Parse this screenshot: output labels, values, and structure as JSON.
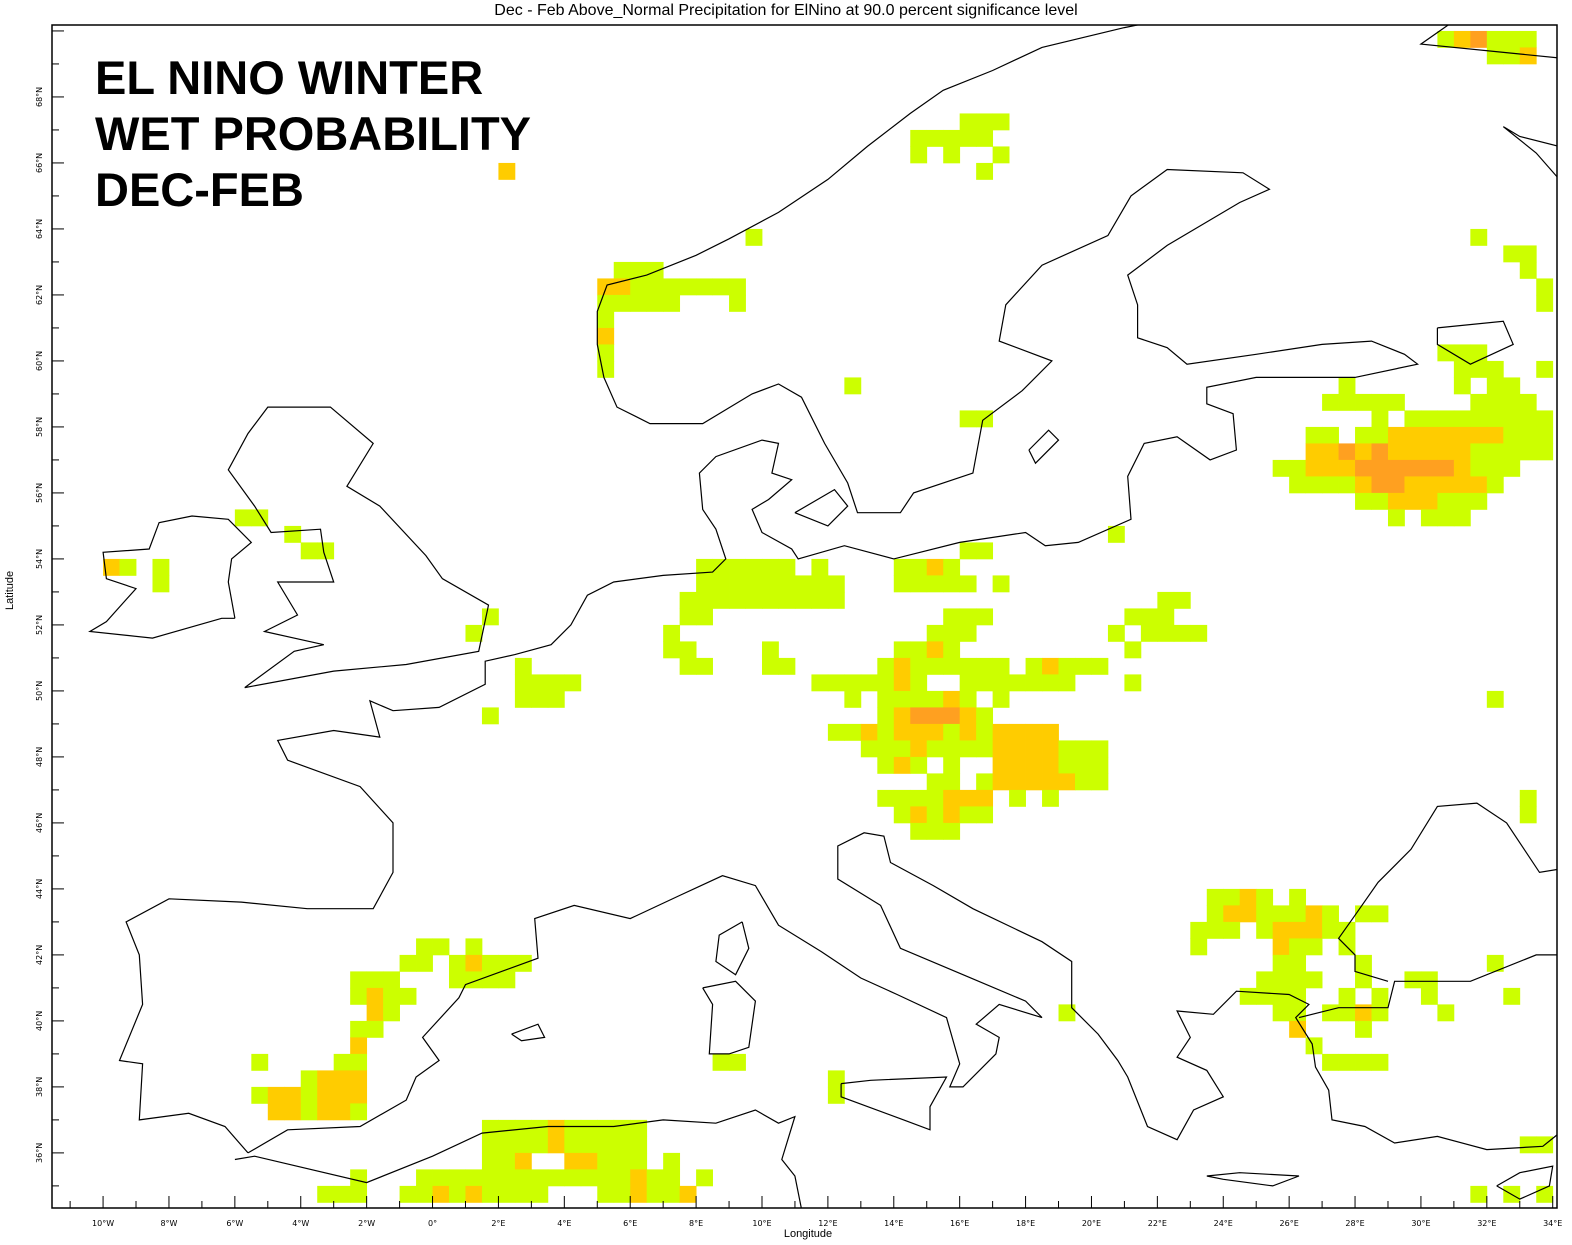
{
  "title": "Dec  - Feb Above_Normal Precipitation for ElNino at 90.0 percent significance level",
  "overlay_lines": [
    "EL NINO WINTER",
    "WET PROBABILITY",
    "DEC-FEB"
  ],
  "axes": {
    "xlabel": "Longitude",
    "ylabel": "Latitude",
    "lon_range": [
      -11.55,
      34.13
    ],
    "lat_range": [
      34.33,
      70.18
    ],
    "x_ticks": [
      "10°W",
      "8°W",
      "6°W",
      "4°W",
      "2°W",
      "0°",
      "2°E",
      "4°E",
      "6°E",
      "8°E",
      "10°E",
      "12°E",
      "14°E",
      "16°E",
      "18°E",
      "20°E",
      "22°E",
      "24°E",
      "26°E",
      "28°E",
      "30°E",
      "32°E",
      "34°E"
    ],
    "x_tick_values": [
      -10,
      -8,
      -6,
      -4,
      -2,
      0,
      2,
      4,
      6,
      8,
      10,
      12,
      14,
      16,
      18,
      20,
      22,
      24,
      26,
      28,
      30,
      32,
      34
    ],
    "y_ticks": [
      "36°N",
      "38°N",
      "40°N",
      "42°N",
      "44°N",
      "46°N",
      "48°N",
      "50°N",
      "52°N",
      "54°N",
      "56°N",
      "58°N",
      "60°N",
      "62°N",
      "64°N",
      "66°N",
      "68°N"
    ],
    "y_tick_values": [
      36,
      38,
      40,
      42,
      44,
      46,
      48,
      50,
      52,
      54,
      56,
      58,
      60,
      62,
      64,
      66,
      68
    ]
  },
  "colors": {
    "g": "#ccff00",
    "y": "#ffcc00",
    "o": "#ffa020",
    "coast": "#000000"
  },
  "legend_levels": {
    "g": "above normal (lowest class)",
    "y": "above normal (middle class)",
    "o": "above normal (highest class)"
  },
  "cell_size_deg": 0.5,
  "cells": [
    {
      "lat": 70.0,
      "lon": 30.5,
      "c": "gyoggg"
    },
    {
      "lat": 69.5,
      "lon": 32.0,
      "c": "ggy"
    },
    {
      "lat": 67.5,
      "lon": 16.0,
      "c": "ggg"
    },
    {
      "lat": 67.0,
      "lon": 14.5,
      "c": "ggggg"
    },
    {
      "lat": 66.5,
      "lon": 14.5,
      "c": "g.g..g"
    },
    {
      "lat": 66.0,
      "lon": 2.0,
      "c": "y"
    },
    {
      "lat": 66.0,
      "lon": 16.5,
      "c": "g"
    },
    {
      "lat": 64.0,
      "lon": 9.5,
      "c": "g"
    },
    {
      "lat": 64.0,
      "lon": 31.5,
      "c": "g"
    },
    {
      "lat": 63.5,
      "lon": 32.5,
      "c": "gg"
    },
    {
      "lat": 63.0,
      "lon": 5.5,
      "c": "ggg"
    },
    {
      "lat": 63.0,
      "lon": 33.0,
      "c": "g"
    },
    {
      "lat": 62.5,
      "lon": 5.0,
      "c": "yyggggggg"
    },
    {
      "lat": 62.5,
      "lon": 33.5,
      "c": "g"
    },
    {
      "lat": 62.0,
      "lon": 5.0,
      "c": "ggggg"
    },
    {
      "lat": 62.0,
      "lon": 9.0,
      "c": "g"
    },
    {
      "lat": 62.0,
      "lon": 33.5,
      "c": "g"
    },
    {
      "lat": 61.5,
      "lon": 5.0,
      "c": "g"
    },
    {
      "lat": 61.0,
      "lon": 5.0,
      "c": "y"
    },
    {
      "lat": 60.5,
      "lon": 5.0,
      "c": "g"
    },
    {
      "lat": 60.0,
      "lon": 5.0,
      "c": "g"
    },
    {
      "lat": 59.5,
      "lon": 12.5,
      "c": "g"
    },
    {
      "lat": 58.5,
      "lon": 16.0,
      "c": "gg"
    },
    {
      "lat": 60.5,
      "lon": 25.5,
      "c": "..........ggg"
    },
    {
      "lat": 60.0,
      "lon": 25.5,
      "c": "...........ggg..g"
    },
    {
      "lat": 59.5,
      "lon": 25.5,
      "c": "....g......g.gg"
    },
    {
      "lat": 59.0,
      "lon": 25.5,
      "c": "...ggggg....gggg"
    },
    {
      "lat": 58.5,
      "lon": 25.5,
      "c": "......g.ggggggggg"
    },
    {
      "lat": 58.0,
      "lon": 25.5,
      "c": "..gg.ggyyyyyyyggg"
    },
    {
      "lat": 57.5,
      "lon": 25.5,
      "c": "..yyoyoyyyyyggggg"
    },
    {
      "lat": 57.0,
      "lon": 25.5,
      "c": "ggyyyooooooyggg"
    },
    {
      "lat": 56.5,
      "lon": 25.5,
      "c": ".ggggyooyyyyyg"
    },
    {
      "lat": 56.0,
      "lon": 25.5,
      "c": ".....ggyyyggg"
    },
    {
      "lat": 55.5,
      "lon": 25.5,
      "c": ".......g.ggg"
    },
    {
      "lat": 55.5,
      "lon": -6.0,
      "c": "gg"
    },
    {
      "lat": 55.0,
      "lon": -4.5,
      "c": "g"
    },
    {
      "lat": 55.0,
      "lon": 20.5,
      "c": "g"
    },
    {
      "lat": 54.5,
      "lon": -4.0,
      "c": "gg"
    },
    {
      "lat": 54.5,
      "lon": 16.0,
      "c": "gg"
    },
    {
      "lat": 54.0,
      "lon": -10.0,
      "c": "yg"
    },
    {
      "lat": 54.0,
      "lon": -8.5,
      "c": "g"
    },
    {
      "lat": 54.0,
      "lon": 8.0,
      "c": "gggggg.g"
    },
    {
      "lat": 54.0,
      "lon": 14.0,
      "c": "ggyg"
    },
    {
      "lat": 53.5,
      "lon": -8.5,
      "c": "g"
    },
    {
      "lat": 53.5,
      "lon": 8.0,
      "c": "ggggggggg"
    },
    {
      "lat": 53.5,
      "lon": 14.0,
      "c": "ggggg.g"
    },
    {
      "lat": 53.0,
      "lon": 7.5,
      "c": "gggggggggg"
    },
    {
      "lat": 53.0,
      "lon": 22.0,
      "c": "gg"
    },
    {
      "lat": 52.5,
      "lon": 1.5,
      "c": "g"
    },
    {
      "lat": 52.5,
      "lon": 7.5,
      "c": "gg"
    },
    {
      "lat": 52.5,
      "lon": 15.5,
      "c": "ggg"
    },
    {
      "lat": 52.5,
      "lon": 21.0,
      "c": "ggg"
    },
    {
      "lat": 52.0,
      "lon": 1.0,
      "c": "g"
    },
    {
      "lat": 52.0,
      "lon": 7.0,
      "c": "g"
    },
    {
      "lat": 52.0,
      "lon": 15.0,
      "c": "ggg"
    },
    {
      "lat": 52.0,
      "lon": 20.5,
      "c": "g.gggg"
    },
    {
      "lat": 51.5,
      "lon": 7.0,
      "c": "gg"
    },
    {
      "lat": 51.5,
      "lon": 10.0,
      "c": "g"
    },
    {
      "lat": 51.5,
      "lon": 14.0,
      "c": "ggyg"
    },
    {
      "lat": 51.5,
      "lon": 21.0,
      "c": "g"
    },
    {
      "lat": 51.0,
      "lon": 2.5,
      "c": "g"
    },
    {
      "lat": 51.0,
      "lon": 7.5,
      "c": "gg"
    },
    {
      "lat": 51.0,
      "lon": 10.0,
      "c": "gg"
    },
    {
      "lat": 51.0,
      "lon": 13.5,
      "c": "gygggggg.gyggg"
    },
    {
      "lat": 50.5,
      "lon": 2.5,
      "c": "gggg"
    },
    {
      "lat": 50.5,
      "lon": 11.5,
      "c": "gggggyg..ggggggg"
    },
    {
      "lat": 50.5,
      "lon": 21.0,
      "c": "g"
    },
    {
      "lat": 50.0,
      "lon": 2.5,
      "c": "ggg"
    },
    {
      "lat": 50.0,
      "lon": 11.5,
      "c": "..g.ggggyg.g"
    },
    {
      "lat": 50.0,
      "lon": 32.0,
      "c": "g"
    },
    {
      "lat": 49.5,
      "lon": 1.5,
      "c": "g"
    },
    {
      "lat": 49.5,
      "lon": 11.5,
      "c": "....gyoooyg"
    },
    {
      "lat": 49.0,
      "lon": 11.5,
      "c": ".ggygyyygygyyyy"
    },
    {
      "lat": 48.5,
      "lon": 11.5,
      "c": "...gggyggggyyyyggg"
    },
    {
      "lat": 48.0,
      "lon": 11.5,
      "c": "....gyg.g..yyyyggg"
    },
    {
      "lat": 47.5,
      "lon": 11.5,
      "c": ".......gg.gyyyyygg"
    },
    {
      "lat": 47.0,
      "lon": 11.5,
      "c": "....ggggyyy.g.g"
    },
    {
      "lat": 47.0,
      "lon": 33.0,
      "c": "g"
    },
    {
      "lat": 46.5,
      "lon": 11.5,
      "c": ".....gygygg"
    },
    {
      "lat": 46.5,
      "lon": 33.0,
      "c": "g"
    },
    {
      "lat": 46.0,
      "lon": 11.5,
      "c": "......ggg"
    },
    {
      "lat": 44.0,
      "lon": 23.0,
      "c": ".ggyg.g"
    },
    {
      "lat": 43.5,
      "lon": 23.0,
      "c": ".gyygggyg.gg"
    },
    {
      "lat": 43.0,
      "lon": 23.0,
      "c": "ggg.gyyygg"
    },
    {
      "lat": 42.5,
      "lon": 23.0,
      "c": "g....ygg.g"
    },
    {
      "lat": 42.0,
      "lon": 23.0,
      "c": ".....gg...g"
    },
    {
      "lat": 42.0,
      "lon": 32.0,
      "c": "g"
    },
    {
      "lat": 41.5,
      "lon": 23.0,
      "c": "....gggg..g..gg"
    },
    {
      "lat": 41.0,
      "lon": 23.0,
      "c": "...gggg..g.g..g"
    },
    {
      "lat": 41.0,
      "lon": 32.5,
      "c": "g"
    },
    {
      "lat": 40.5,
      "lon": 19.0,
      "c": "g"
    },
    {
      "lat": 40.5,
      "lon": 23.0,
      "c": ".....gg.ggyg...g"
    },
    {
      "lat": 40.0,
      "lon": 23.0,
      "c": "......y...g"
    },
    {
      "lat": 39.5,
      "lon": 23.0,
      "c": ".......g"
    },
    {
      "lat": 39.0,
      "lon": 23.0,
      "c": "........gggg"
    },
    {
      "lat": 36.5,
      "lon": 33.0,
      "c": "gg"
    },
    {
      "lat": 35.0,
      "lon": 31.5,
      "c": "g.g.g"
    },
    {
      "lat": 39.0,
      "lon": 8.5,
      "c": "gg"
    },
    {
      "lat": 38.5,
      "lon": 12.0,
      "c": "g"
    },
    {
      "lat": 38.0,
      "lon": 12.0,
      "c": "g"
    },
    {
      "lat": 42.5,
      "lon": -0.5,
      "c": "gg"
    },
    {
      "lat": 42.5,
      "lon": 1.0,
      "c": "g"
    },
    {
      "lat": 42.0,
      "lon": -1.0,
      "c": "gg"
    },
    {
      "lat": 42.0,
      "lon": 0.5,
      "c": "gyggg"
    },
    {
      "lat": 41.5,
      "lon": -2.5,
      "c": "ggg"
    },
    {
      "lat": 41.5,
      "lon": 0.5,
      "c": "gggg"
    },
    {
      "lat": 41.0,
      "lon": -2.5,
      "c": "gygg"
    },
    {
      "lat": 40.5,
      "lon": -2.0,
      "c": "yg"
    },
    {
      "lat": 40.0,
      "lon": -2.5,
      "c": "gg"
    },
    {
      "lat": 39.5,
      "lon": -2.5,
      "c": "y"
    },
    {
      "lat": 39.0,
      "lon": -5.5,
      "c": "g"
    },
    {
      "lat": 39.0,
      "lon": -3.0,
      "c": "gg"
    },
    {
      "lat": 38.5,
      "lon": -4.0,
      "c": "gyyy"
    },
    {
      "lat": 38.0,
      "lon": -5.5,
      "c": "gyygyyy"
    },
    {
      "lat": 37.5,
      "lon": -5.0,
      "c": "yygyyg"
    },
    {
      "lat": 37.0,
      "lon": 1.5,
      "c": "ggggyggggg"
    },
    {
      "lat": 36.5,
      "lon": 1.5,
      "c": "ggggyggggg"
    },
    {
      "lat": 36.0,
      "lon": 1.5,
      "c": "ggy..yyggg.g"
    },
    {
      "lat": 35.5,
      "lon": -2.5,
      "c": "g"
    },
    {
      "lat": 35.5,
      "lon": -0.5,
      "c": "gggggggggggggygg.g"
    },
    {
      "lat": 35.0,
      "lon": -3.5,
      "c": "ggg"
    },
    {
      "lat": 35.0,
      "lon": -1.0,
      "c": "ggygygggg...ggyggy"
    }
  ]
}
